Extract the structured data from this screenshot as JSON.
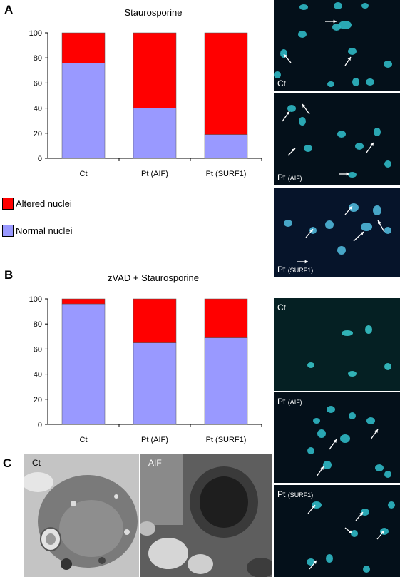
{
  "panels": {
    "a": "A",
    "b": "B",
    "c": "C"
  },
  "chart_data": [
    {
      "type": "bar",
      "title": "Staurosporine",
      "categories": [
        "Ct",
        "Pt (AIF)",
        "Pt (SURF1)"
      ],
      "stacked": true,
      "ylim": [
        0,
        100
      ],
      "yticks": [
        0,
        20,
        40,
        60,
        80,
        100
      ],
      "grid": false,
      "series": [
        {
          "name": "Normal nuclei",
          "color": "#9999ff",
          "values": [
            76,
            40,
            19
          ]
        },
        {
          "name": "Altered nuclei",
          "color": "#ff0000",
          "values": [
            24,
            60,
            81
          ]
        }
      ]
    },
    {
      "type": "bar",
      "title": "zVAD + Staurosporine",
      "categories": [
        "Ct",
        "Pt (AIF)",
        "Pt (SURF1)"
      ],
      "stacked": true,
      "ylim": [
        0,
        100
      ],
      "yticks": [
        0,
        20,
        40,
        60,
        80,
        100
      ],
      "grid": false,
      "series": [
        {
          "name": "Normal nuclei",
          "color": "#9999ff",
          "values": [
            96,
            65,
            69
          ]
        },
        {
          "name": "Altered nuclei",
          "color": "#ff0000",
          "values": [
            4,
            35,
            31
          ]
        }
      ]
    }
  ],
  "legend": {
    "altered": {
      "label": "Altered nuclei",
      "color": "#ff0000"
    },
    "normal": {
      "label": "Normal nuclei",
      "color": "#9999ff"
    }
  },
  "micrographs": {
    "a1": {
      "main": "Ct",
      "sub": ""
    },
    "a2": {
      "main": "Pt",
      "sub": "(AIF)"
    },
    "a3": {
      "main": "Pt",
      "sub": "(SURF1)"
    },
    "b1": {
      "main": "Ct",
      "sub": ""
    },
    "b2": {
      "main": "Pt",
      "sub": "(AIF)"
    },
    "b3": {
      "main": "Pt",
      "sub": "(SURF1)"
    }
  },
  "em_images": {
    "left": "Ct",
    "right": "AIF"
  }
}
